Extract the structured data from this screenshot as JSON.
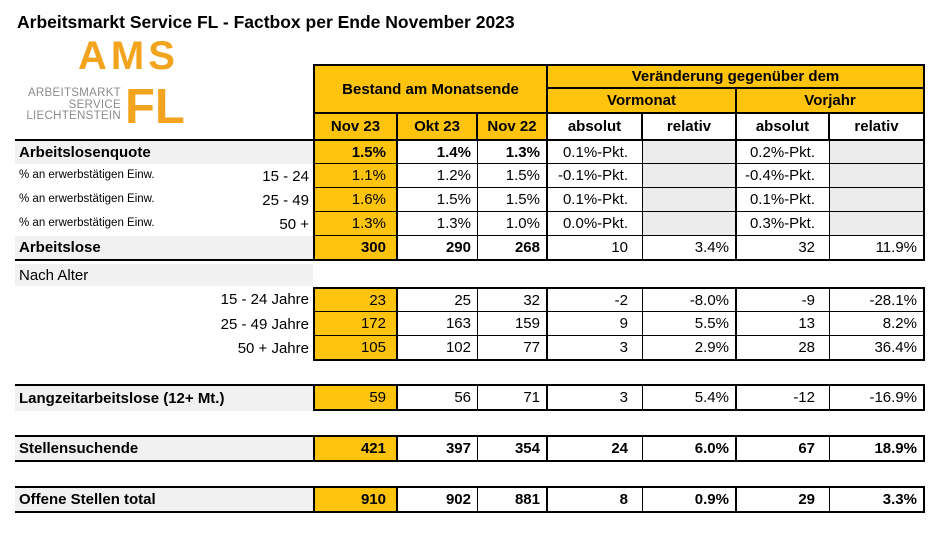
{
  "title": "Arbeitsmarkt Service FL - Factbox per Ende November 2023",
  "logo": {
    "acronym": "AMS",
    "region": "FL",
    "subtitle_lines": [
      "ARBEITSMARKT",
      "SERVICE",
      "LIECHTENSTEIN"
    ],
    "orange": "#F2A41E",
    "text_gray": "#8C8C8C"
  },
  "colors": {
    "table_yellow": "#FEC30D",
    "label_gray": "#F1F1F1",
    "empty_cell_gray": "#ECECEC",
    "border_black": "#000000"
  },
  "header": {
    "bestand": "Bestand am Monatsende",
    "veraenderung": "Veränderung gegenüber dem",
    "vormonat": "Vormonat",
    "vorjahr": "Vorjahr",
    "months": [
      "Nov 23",
      "Okt 23",
      "Nov 22"
    ],
    "measure_cols": [
      "absolut",
      "relativ",
      "absolut",
      "relativ"
    ]
  },
  "rows": {
    "arbeitslosenquote": {
      "label": "Arbeitslosenquote",
      "values": [
        "1.5%",
        "1.4%",
        "1.3%",
        "0.1%-Pkt.",
        "",
        "0.2%-Pkt.",
        ""
      ]
    },
    "quote_15_24": {
      "label": "% an erwerbstätigen Einw.",
      "age": "15 - 24",
      "values": [
        "1.1%",
        "1.2%",
        "1.5%",
        "-0.1%-Pkt.",
        "",
        "-0.4%-Pkt.",
        ""
      ]
    },
    "quote_25_49": {
      "label": "% an erwerbstätigen Einw.",
      "age": "25 - 49",
      "values": [
        "1.6%",
        "1.5%",
        "1.5%",
        "0.1%-Pkt.",
        "",
        "0.1%-Pkt.",
        ""
      ]
    },
    "quote_50_plus": {
      "label": "% an erwerbstätigen Einw.",
      "age": "50 +",
      "values": [
        "1.3%",
        "1.3%",
        "1.0%",
        "0.0%-Pkt.",
        "",
        "0.3%-Pkt.",
        ""
      ]
    },
    "arbeitslose": {
      "label": "Arbeitslose",
      "values": [
        "300",
        "290",
        "268",
        "10",
        "3.4%",
        "32",
        "11.9%"
      ]
    },
    "nach_alter": {
      "label": "Nach Alter"
    },
    "age_15_24": {
      "label": "15 - 24 Jahre",
      "values": [
        "23",
        "25",
        "32",
        "-2",
        "-8.0%",
        "-9",
        "-28.1%"
      ]
    },
    "age_25_49": {
      "label": "25 - 49 Jahre",
      "values": [
        "172",
        "163",
        "159",
        "9",
        "5.5%",
        "13",
        "8.2%"
      ]
    },
    "age_50_plus": {
      "label": "50 + Jahre",
      "values": [
        "105",
        "102",
        "77",
        "3",
        "2.9%",
        "28",
        "36.4%"
      ]
    },
    "langzeitarbeitslose": {
      "label": "Langzeitarbeitslose (12+ Mt.)",
      "values": [
        "59",
        "56",
        "71",
        "3",
        "5.4%",
        "-12",
        "-16.9%"
      ]
    },
    "stellensuchende": {
      "label": "Stellensuchende",
      "values": [
        "421",
        "397",
        "354",
        "24",
        "6.0%",
        "67",
        "18.9%"
      ]
    },
    "offene_stellen": {
      "label": "Offene Stellen total",
      "values": [
        "910",
        "902",
        "881",
        "8",
        "0.9%",
        "29",
        "3.3%"
      ]
    }
  }
}
